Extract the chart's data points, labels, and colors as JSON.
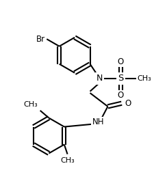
{
  "bg_color": "#ffffff",
  "line_color": "#000000",
  "line_width": 1.5,
  "font_size": 8.5,
  "r_ring": 0.55,
  "xlim": [
    -0.5,
    4.2
  ],
  "ylim": [
    0.2,
    5.8
  ]
}
